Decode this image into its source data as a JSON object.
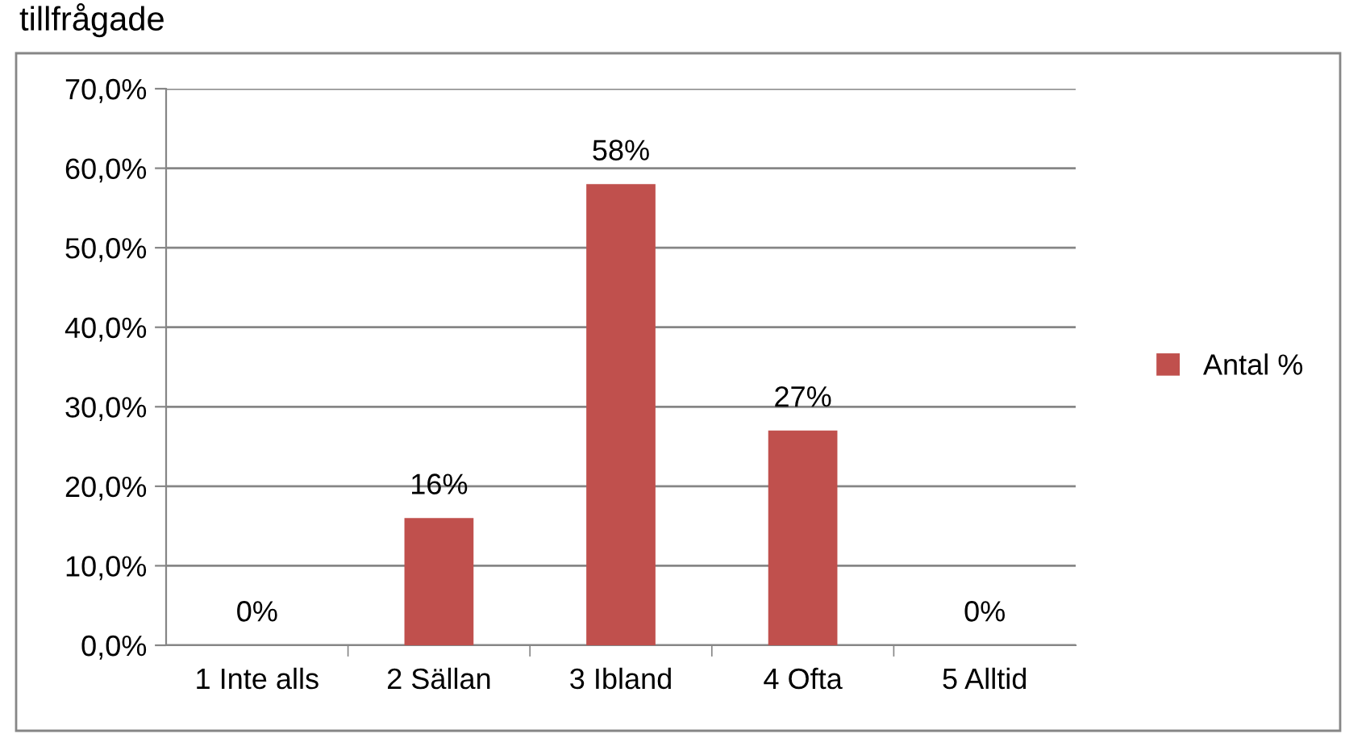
{
  "chart_data": {
    "type": "bar",
    "title": "tillfrågade",
    "categories": [
      "1 Inte alls",
      "2 Sällan",
      "3 Ibland",
      "4 Ofta",
      "5 Alltid"
    ],
    "series": [
      {
        "name": "Antal %",
        "color": "#c0504d",
        "values": [
          0,
          16,
          58,
          27,
          0
        ],
        "value_labels": [
          "0%",
          "16%",
          "58%",
          "27%",
          "0%"
        ]
      }
    ],
    "ylim": [
      0,
      70
    ],
    "yticks": [
      {
        "value": 0,
        "label": "0,0%"
      },
      {
        "value": 10,
        "label": "10,0%"
      },
      {
        "value": 20,
        "label": "20,0%"
      },
      {
        "value": 30,
        "label": "30,0%"
      },
      {
        "value": 40,
        "label": "40,0%"
      },
      {
        "value": 50,
        "label": "50,0%"
      },
      {
        "value": 60,
        "label": "60,0%"
      },
      {
        "value": 70,
        "label": "70,0%"
      }
    ],
    "grid": "y",
    "legend": "right"
  }
}
